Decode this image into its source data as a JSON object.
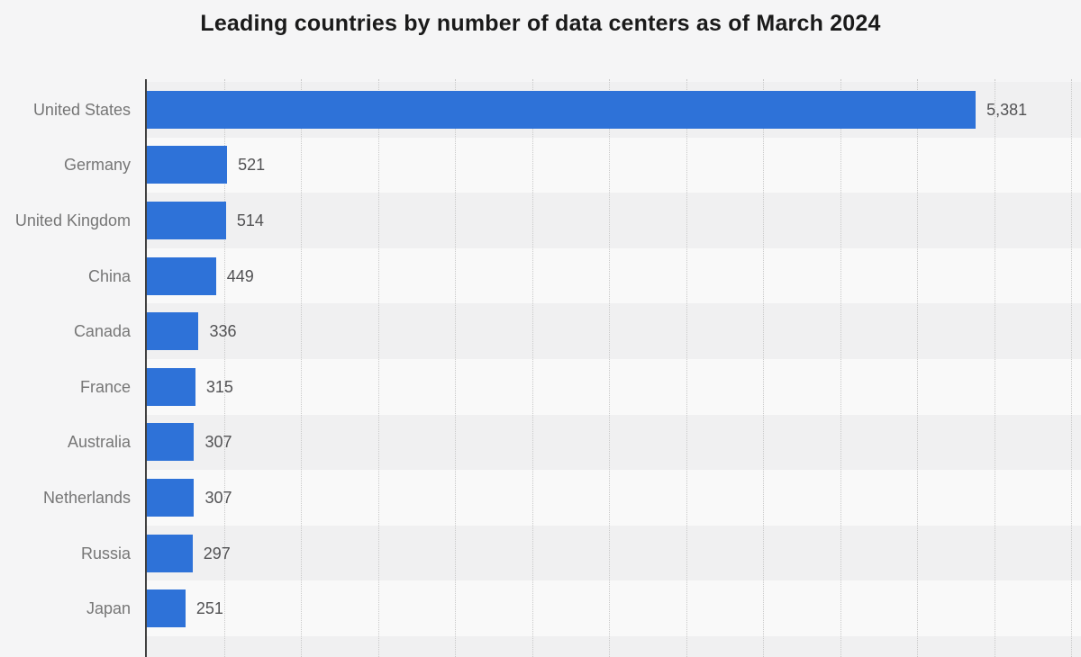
{
  "page": {
    "background": "#f5f5f6",
    "band_dark": "#f0f0f1",
    "band_light": "#f9f9f9",
    "axis_color": "#404040",
    "gridline_color": "#c9c9c9"
  },
  "chart_data": {
    "type": "bar",
    "orientation": "horizontal",
    "title": "Leading countries by number of data centers as of March 2024",
    "categories": [
      "United States",
      "Germany",
      "United Kingdom",
      "China",
      "Canada",
      "France",
      "Australia",
      "Netherlands",
      "Russia",
      "Japan"
    ],
    "values": [
      5381,
      521,
      514,
      449,
      336,
      315,
      307,
      307,
      297,
      251
    ],
    "value_labels": [
      "5,381",
      "521",
      "514",
      "449",
      "336",
      "315",
      "307",
      "307",
      "297",
      "251"
    ],
    "xlabel": "",
    "ylabel": "",
    "xlim": [
      0,
      6000
    ],
    "grid_step": 500,
    "grid": true,
    "legend": false,
    "bar_color": "#2e72d8",
    "title_color": "#1a1a1a",
    "category_label_color": "#767676",
    "value_label_color": "#525254"
  }
}
